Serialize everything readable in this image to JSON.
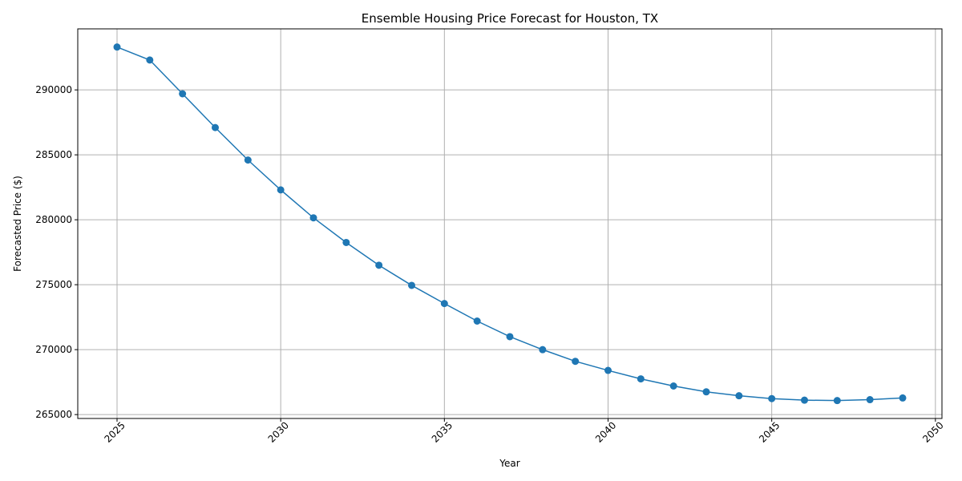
{
  "chart_data": {
    "type": "line",
    "title": "Ensemble Housing Price Forecast for Houston, TX",
    "xlabel": "Year",
    "ylabel": "Forecasted Price ($)",
    "xlim": [
      2023.8,
      2050.2
    ],
    "ylim": [
      264700,
      294700
    ],
    "x_ticks": [
      2025,
      2030,
      2035,
      2040,
      2045,
      2050
    ],
    "x_tick_labels": [
      "2025",
      "2030",
      "2035",
      "2040",
      "2045",
      "2050"
    ],
    "y_ticks": [
      265000,
      270000,
      275000,
      280000,
      285000,
      290000
    ],
    "y_tick_labels": [
      "265000",
      "270000",
      "275000",
      "280000",
      "285000",
      "290000"
    ],
    "grid": true,
    "color": "#1f77b4",
    "x": [
      2025,
      2026,
      2027,
      2028,
      2029,
      2030,
      2031,
      2032,
      2033,
      2034,
      2035,
      2036,
      2037,
      2038,
      2039,
      2040,
      2041,
      2042,
      2043,
      2044,
      2045,
      2046,
      2047,
      2048,
      2049
    ],
    "values": [
      293300,
      292300,
      289700,
      287100,
      284600,
      282300,
      280150,
      278250,
      276500,
      274950,
      273550,
      272200,
      271000,
      270000,
      269100,
      268400,
      267750,
      267200,
      266750,
      266450,
      266230,
      266110,
      266080,
      266150,
      266280
    ]
  }
}
